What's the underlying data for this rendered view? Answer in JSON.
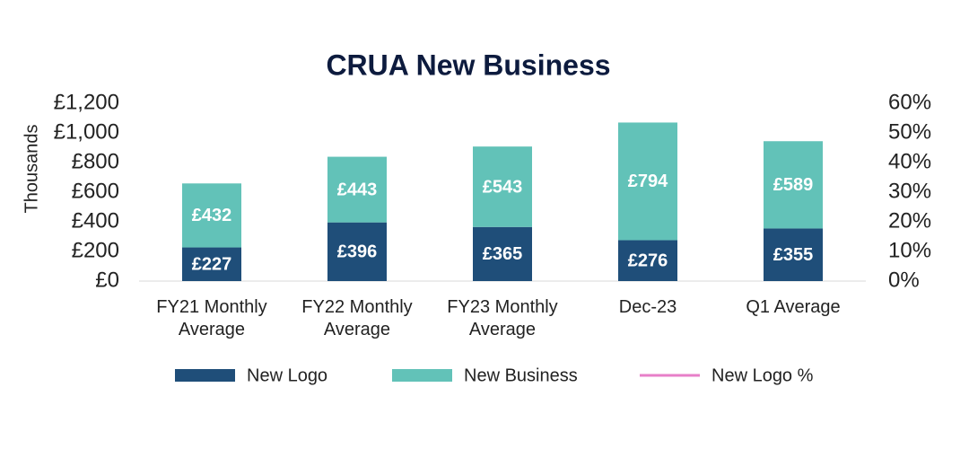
{
  "chart_data": {
    "type": "bar",
    "stacked": true,
    "title": "CRUA New Business",
    "y_label": "Thousands",
    "categories": [
      "FY21 Monthly Average",
      "FY22 Monthly Average",
      "FY23 Monthly Average",
      "Dec-23",
      "Q1 Average"
    ],
    "series": [
      {
        "name": "New Logo",
        "color": "#1f4e79",
        "values": [
          227,
          396,
          365,
          276,
          355
        ],
        "value_labels": [
          "£227",
          "£396",
          "£365",
          "£276",
          "£355"
        ]
      },
      {
        "name": "New Business",
        "color": "#62c2b8",
        "values": [
          432,
          443,
          543,
          794,
          589
        ],
        "value_labels": [
          "£432",
          "£443",
          "£543",
          "£794",
          "£589"
        ]
      },
      {
        "name": "New Logo %",
        "color": "#e77fc8",
        "axis": "y2",
        "type": "line",
        "values": [
          null,
          null,
          null,
          null,
          null
        ]
      }
    ],
    "ylim": [
      0,
      1200
    ],
    "yticks": [
      {
        "value": 0,
        "label": "£0"
      },
      {
        "value": 200,
        "label": "£200"
      },
      {
        "value": 400,
        "label": "£400"
      },
      {
        "value": 600,
        "label": "£600"
      },
      {
        "value": 800,
        "label": "£800"
      },
      {
        "value": 1000,
        "label": "£1,000"
      },
      {
        "value": 1200,
        "label": "£1,200"
      }
    ],
    "y2lim": [
      0,
      60
    ],
    "y2ticks": [
      {
        "value": 0,
        "label": "0%"
      },
      {
        "value": 10,
        "label": "10%"
      },
      {
        "value": 20,
        "label": "20%"
      },
      {
        "value": 30,
        "label": "30%"
      },
      {
        "value": 40,
        "label": "40%"
      },
      {
        "value": 50,
        "label": "50%"
      },
      {
        "value": 60,
        "label": "60%"
      }
    ],
    "legend": "bottom"
  }
}
